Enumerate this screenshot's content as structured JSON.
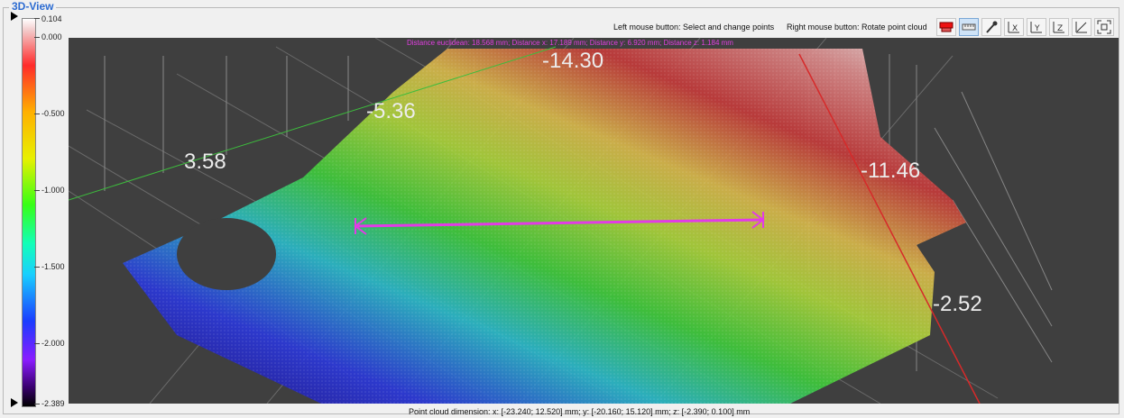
{
  "panel": {
    "title": "3D-View"
  },
  "toolbar": {
    "hint_left": "Left mouse button: Select and change points",
    "hint_right": "Right mouse button: Rotate point cloud",
    "buttons": [
      {
        "name": "color-mode-icon",
        "active": false
      },
      {
        "name": "ruler-icon",
        "active": true
      },
      {
        "name": "eyedropper-icon",
        "active": false
      },
      {
        "name": "axis-x-icon",
        "active": false
      },
      {
        "name": "axis-y-icon",
        "active": false
      },
      {
        "name": "axis-z-icon",
        "active": false
      },
      {
        "name": "axis-xy-icon",
        "active": false
      },
      {
        "name": "fit-view-icon",
        "active": false
      }
    ]
  },
  "colorbar": {
    "labels": [
      "0.104",
      "0.000",
      "-0.500",
      "-1.000",
      "-1.500",
      "-2.000",
      "-2.389"
    ]
  },
  "viewport": {
    "distance_readout": "Distance euclidean: 18.568 mm;  Distance x: 17.189 mm;  Distance y: 6.920 mm;  Distance z: 1.184 mm",
    "axis_labels": [
      "-14.30",
      "-5.36",
      "3.58",
      "-11.46",
      "-2.52"
    ]
  },
  "status": {
    "dimension_text": "Point cloud dimension:   x: [-23.240; 12.520] mm;   y: [-20.160; 15.120] mm;   z: [-2.390; 0.100] mm"
  },
  "colors": {
    "measurement": "#e23be6",
    "background": "#3f3f3f",
    "title": "#2c6bd1"
  }
}
